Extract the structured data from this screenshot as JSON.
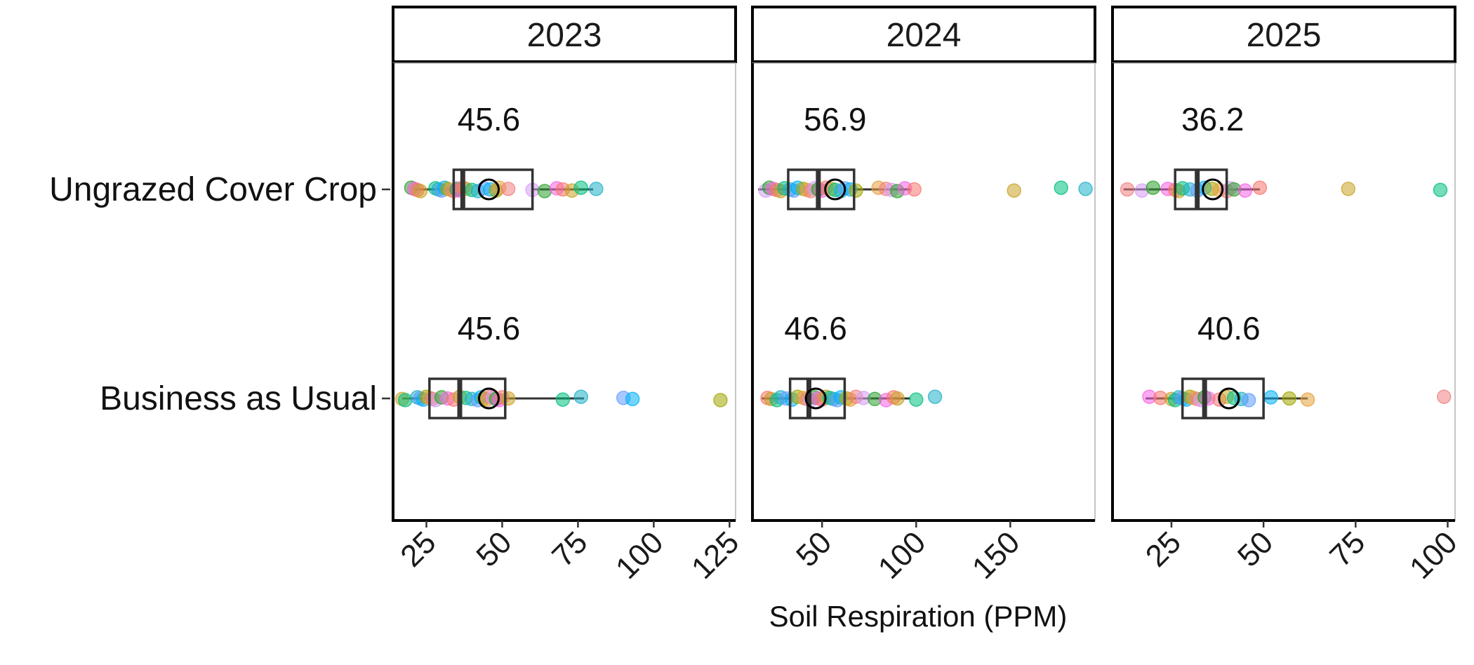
{
  "chart_data": {
    "type": "boxplot-jitter",
    "xlabel": "Soil Respiration (PPM)",
    "ylabel": "",
    "categories": [
      "Ungrazed Cover Crop",
      "Business as Usual"
    ],
    "point_colors": [
      "#2CA02C",
      "#1FB0C9",
      "#F08080",
      "#C9A227",
      "#A3A500",
      "#F564E3",
      "#619CFF",
      "#D69DF5",
      "#00BF7D",
      "#E6A23C",
      "#F8766D",
      "#00B0F6"
    ],
    "colors": {
      "box": "#333333",
      "whisker": "#333333",
      "mean_marker": "#000000",
      "frame": "#000000"
    },
    "panels": [
      {
        "facet": "2023",
        "xlim": [
          14,
          127
        ],
        "ticks": [
          25,
          50,
          75,
          100,
          125
        ],
        "groups": [
          {
            "category": "Ungrazed Cover Crop",
            "mean_label": "45.6",
            "mean": 45.6,
            "box": {
              "whisker_low": 21,
              "q1": 34,
              "median": 37,
              "q3": 60,
              "whisker_high": 80
            },
            "points": [
              20,
              21,
              22,
              23,
              28,
              29,
              30,
              31,
              32,
              33,
              34,
              35,
              35,
              36,
              37,
              38,
              40,
              42,
              44,
              46,
              48,
              49,
              52,
              60,
              64,
              68,
              70,
              73,
              76,
              81
            ]
          },
          {
            "category": "Business as Usual",
            "mean_label": "45.6",
            "mean": 45.6,
            "box": {
              "whisker_low": 17,
              "q1": 26,
              "median": 36,
              "q3": 51,
              "whisker_high": 77
            },
            "points": [
              17,
              18,
              22,
              23,
              24,
              25,
              26,
              27,
              28,
              30,
              32,
              34,
              36,
              38,
              40,
              42,
              43,
              44,
              45,
              46,
              47,
              48,
              49,
              50,
              52,
              70,
              76,
              90,
              93,
              122
            ]
          }
        ]
      },
      {
        "facet": "2024",
        "xlim": [
          13,
          195
        ],
        "ticks": [
          50,
          100,
          150
        ],
        "groups": [
          {
            "category": "Ungrazed Cover Crop",
            "mean_label": "56.9",
            "mean": 56.9,
            "box": {
              "whisker_low": 16,
              "q1": 32,
              "median": 48,
              "q3": 67,
              "whisker_high": 97
            },
            "points": [
              20,
              22,
              24,
              26,
              28,
              30,
              33,
              35,
              37,
              40,
              42,
              44,
              46,
              48,
              50,
              52,
              55,
              57,
              60,
              62,
              65,
              68,
              80,
              84,
              87,
              90,
              94,
              99,
              152,
              177,
              190
            ]
          },
          {
            "category": "Business as Usual",
            "mean_label": "46.6",
            "mean": 46.6,
            "box": {
              "whisker_low": 18,
              "q1": 33,
              "median": 43,
              "q3": 62,
              "whisker_high": 97
            },
            "points": [
              21,
              23,
              26,
              28,
              31,
              34,
              37,
              40,
              42,
              44,
              46,
              48,
              50,
              52,
              54,
              56,
              58,
              60,
              63,
              65,
              68,
              72,
              78,
              84,
              88,
              90,
              100,
              110
            ]
          }
        ]
      },
      {
        "facet": "2025",
        "xlim": [
          9,
          102
        ],
        "ticks": [
          25,
          50,
          75,
          100
        ],
        "groups": [
          {
            "category": "Ungrazed Cover Crop",
            "mean_label": "36.2",
            "mean": 36.2,
            "box": {
              "whisker_low": 12,
              "q1": 26,
              "median": 32,
              "q3": 40,
              "whisker_high": 49
            },
            "points": [
              13,
              17,
              20,
              24,
              26,
              27,
              28,
              30,
              32,
              34,
              36,
              38,
              40,
              41,
              42,
              45,
              49,
              73,
              98
            ]
          },
          {
            "category": "Business as Usual",
            "mean_label": "40.6",
            "mean": 40.6,
            "box": {
              "whisker_low": 18,
              "q1": 28,
              "median": 34,
              "q3": 50,
              "whisker_high": 62
            },
            "points": [
              19,
              22,
              25,
              26,
              27,
              28,
              29,
              30,
              31,
              32,
              33,
              34,
              35,
              38,
              40,
              42,
              44,
              46,
              52,
              57,
              62,
              99
            ]
          }
        ]
      }
    ]
  }
}
